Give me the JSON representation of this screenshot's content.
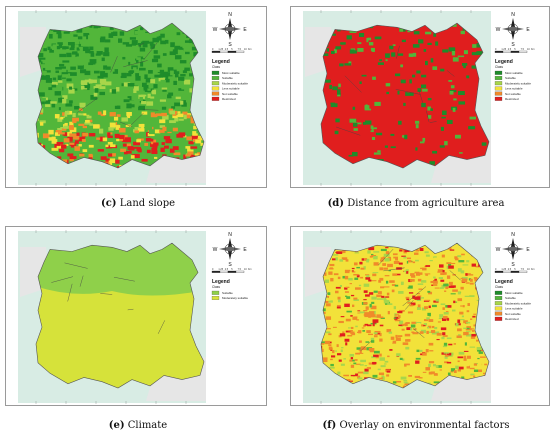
{
  "panels": [
    {
      "id": "c",
      "caption_letter": "(c)",
      "caption_text": "Land slope",
      "legend_title": "Legend",
      "legend_sub": "Class",
      "legend_items": [
        {
          "label": "Most suitable",
          "color": "#1e8c2a"
        },
        {
          "label": "Suitable",
          "color": "#52b63a"
        },
        {
          "label": "Moderately suitable",
          "color": "#a8d64a"
        },
        {
          "label": "Less suitable",
          "color": "#f2e23a"
        },
        {
          "label": "Not suitable",
          "color": "#f08a2a"
        },
        {
          "label": "Restricted",
          "color": "#e01e1e"
        }
      ],
      "scale_labels": [
        "0",
        "1.25",
        "2.5",
        "5",
        "7.5",
        "10",
        "Km"
      ]
    },
    {
      "id": "d",
      "caption_letter": "(d)",
      "caption_text": "Distance from agriculture area",
      "legend_title": "Legend",
      "legend_sub": "Class",
      "legend_items": [
        {
          "label": "Most suitable",
          "color": "#1e8c2a"
        },
        {
          "label": "Suitable",
          "color": "#52b63a"
        },
        {
          "label": "Moderately suitable",
          "color": "#a8d64a"
        },
        {
          "label": "Less suitable",
          "color": "#f2e23a"
        },
        {
          "label": "Not suitable",
          "color": "#f08a2a"
        },
        {
          "label": "Restricted",
          "color": "#e01e1e"
        }
      ],
      "scale_labels": [
        "0",
        "1.25",
        "2.5",
        "5",
        "7.5",
        "10",
        "Km"
      ]
    },
    {
      "id": "e",
      "caption_letter": "(e)",
      "caption_text": "Climate",
      "legend_title": "Legend",
      "legend_sub": "Class",
      "legend_items": [
        {
          "label": "Suitable",
          "color": "#8fd04a"
        },
        {
          "label": "Moderately suitable",
          "color": "#d6e23a"
        }
      ],
      "scale_labels": [
        "0",
        "1.25",
        "2.5",
        "5",
        "7.5",
        "10",
        "Km"
      ]
    },
    {
      "id": "f",
      "caption_letter": "(f)",
      "caption_text": "Overlay on environmental factors",
      "legend_title": "Legend",
      "legend_sub": "Class",
      "legend_items": [
        {
          "label": "Most suitable",
          "color": "#1e8c2a"
        },
        {
          "label": "Suitable",
          "color": "#52b63a"
        },
        {
          "label": "Moderately suitable",
          "color": "#a8d64a"
        },
        {
          "label": "Less suitable",
          "color": "#f2e23a"
        },
        {
          "label": "Not suitable",
          "color": "#f08a2a"
        },
        {
          "label": "Restricted",
          "color": "#e01e1e"
        }
      ],
      "scale_labels": [
        "0",
        "1.25",
        "2.5",
        "5",
        "7.5",
        "10",
        "Km"
      ]
    }
  ],
  "compass_letters": {
    "n": "N",
    "s": "S",
    "e": "E",
    "w": "W"
  },
  "colors": {
    "sea": "#d8ece4",
    "land_bg": "#e6e6e6",
    "boundary": "#555555"
  }
}
